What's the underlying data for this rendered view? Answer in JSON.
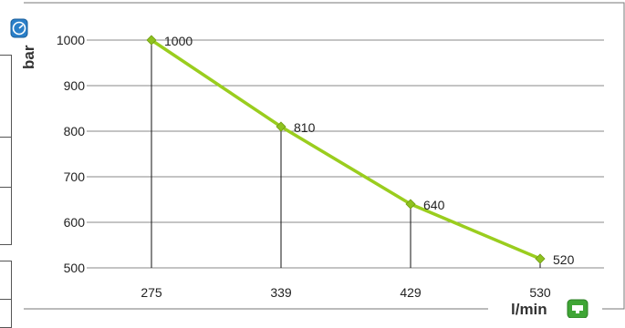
{
  "chart_data": {
    "type": "line",
    "x": [
      "275",
      "339",
      "429",
      "530"
    ],
    "values": [
      1000,
      810,
      640,
      520
    ],
    "data_labels": [
      "1000",
      "810",
      "640",
      "520"
    ],
    "ylim": [
      500,
      1000
    ],
    "yticks": [
      500,
      600,
      700,
      800,
      900,
      1000
    ],
    "ytick_labels": [
      "500",
      "600",
      "700",
      "800",
      "900",
      "1000"
    ],
    "ylabel": "bar",
    "xlabel": "l/min",
    "grid": "horizontal",
    "drop_lines": true,
    "series_color": "#9acd1e",
    "marker_color": "#8ec21f",
    "icons": {
      "y_axis_icon": "pressure-gauge-icon",
      "x_axis_icon": "flow-pump-icon"
    }
  }
}
